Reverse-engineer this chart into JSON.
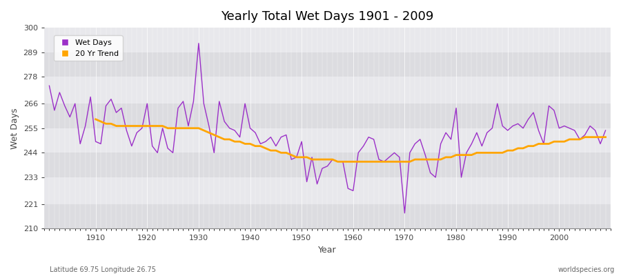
{
  "title": "Yearly Total Wet Days 1901 - 2009",
  "xlabel": "Year",
  "ylabel": "Wet Days",
  "subtitle_left": "Latitude 69.75 Longitude 26.75",
  "subtitle_right": "worldspecies.org",
  "wet_days_color": "#9b30c8",
  "trend_color": "#FFA500",
  "fig_bg_color": "#ffffff",
  "plot_bg_color": "#e8e8ec",
  "ylim": [
    210,
    300
  ],
  "yticks": [
    210,
    221,
    233,
    244,
    255,
    266,
    278,
    289,
    300
  ],
  "xticks": [
    1910,
    1920,
    1930,
    1940,
    1950,
    1960,
    1970,
    1980,
    1990,
    2000
  ],
  "xlim": [
    1900,
    2010
  ],
  "years": [
    1901,
    1902,
    1903,
    1904,
    1905,
    1906,
    1907,
    1908,
    1909,
    1910,
    1911,
    1912,
    1913,
    1914,
    1915,
    1916,
    1917,
    1918,
    1919,
    1920,
    1921,
    1922,
    1923,
    1924,
    1925,
    1926,
    1927,
    1928,
    1929,
    1930,
    1931,
    1932,
    1933,
    1934,
    1935,
    1936,
    1937,
    1938,
    1939,
    1940,
    1941,
    1942,
    1943,
    1944,
    1945,
    1946,
    1947,
    1948,
    1949,
    1950,
    1951,
    1952,
    1953,
    1954,
    1955,
    1956,
    1957,
    1958,
    1959,
    1960,
    1961,
    1962,
    1963,
    1964,
    1965,
    1966,
    1967,
    1968,
    1969,
    1970,
    1971,
    1972,
    1973,
    1974,
    1975,
    1976,
    1977,
    1978,
    1979,
    1980,
    1981,
    1982,
    1983,
    1984,
    1985,
    1986,
    1987,
    1988,
    1989,
    1990,
    1991,
    1992,
    1993,
    1994,
    1995,
    1996,
    1997,
    1998,
    1999,
    2000,
    2001,
    2002,
    2003,
    2004,
    2005,
    2006,
    2007,
    2008,
    2009
  ],
  "wet_days": [
    274,
    263,
    271,
    265,
    260,
    266,
    248,
    256,
    269,
    249,
    248,
    265,
    268,
    262,
    264,
    254,
    247,
    253,
    255,
    266,
    247,
    244,
    255,
    246,
    244,
    264,
    267,
    256,
    267,
    293,
    266,
    256,
    244,
    267,
    258,
    255,
    254,
    251,
    266,
    255,
    253,
    248,
    249,
    251,
    247,
    251,
    252,
    241,
    242,
    249,
    231,
    242,
    230,
    237,
    238,
    241,
    240,
    240,
    228,
    227,
    244,
    247,
    251,
    250,
    241,
    240,
    242,
    244,
    242,
    217,
    244,
    248,
    250,
    243,
    235,
    233,
    248,
    253,
    250,
    264,
    233,
    244,
    248,
    253,
    247,
    253,
    255,
    266,
    256,
    254,
    256,
    257,
    255,
    259,
    262,
    254,
    248,
    265,
    263,
    255,
    256,
    255,
    254,
    250,
    252,
    256,
    254,
    248,
    254
  ],
  "trend_years": [
    1910,
    1911,
    1912,
    1913,
    1914,
    1915,
    1916,
    1917,
    1918,
    1919,
    1920,
    1921,
    1922,
    1923,
    1924,
    1925,
    1926,
    1927,
    1928,
    1929,
    1930,
    1931,
    1932,
    1933,
    1934,
    1935,
    1936,
    1937,
    1938,
    1939,
    1940,
    1941,
    1942,
    1943,
    1944,
    1945,
    1946,
    1947,
    1948,
    1949,
    1950,
    1951,
    1952,
    1953,
    1954,
    1955,
    1956,
    1957,
    1958,
    1959,
    1960,
    1961,
    1962,
    1963,
    1964,
    1965,
    1966,
    1967,
    1968,
    1969,
    1970,
    1971,
    1972,
    1973,
    1974,
    1975,
    1976,
    1977,
    1978,
    1979,
    1980,
    1981,
    1982,
    1983,
    1984,
    1985,
    1986,
    1987,
    1988,
    1989,
    1990,
    1991,
    1992,
    1993,
    1994,
    1995,
    1996,
    1997,
    1998,
    1999,
    2000,
    2001,
    2002,
    2003,
    2004,
    2005,
    2006,
    2007,
    2008,
    2009
  ],
  "trend_values": [
    259,
    258,
    257,
    257,
    256,
    256,
    256,
    256,
    256,
    256,
    256,
    256,
    256,
    256,
    255,
    255,
    255,
    255,
    255,
    255,
    255,
    254,
    253,
    252,
    251,
    250,
    250,
    249,
    249,
    248,
    248,
    247,
    247,
    246,
    245,
    245,
    244,
    244,
    243,
    242,
    242,
    242,
    241,
    241,
    241,
    241,
    241,
    240,
    240,
    240,
    240,
    240,
    240,
    240,
    240,
    240,
    240,
    240,
    240,
    240,
    240,
    240,
    241,
    241,
    241,
    241,
    241,
    241,
    242,
    242,
    243,
    243,
    243,
    243,
    244,
    244,
    244,
    244,
    244,
    244,
    245,
    245,
    246,
    246,
    247,
    247,
    248,
    248,
    248,
    249,
    249,
    249,
    250,
    250,
    250,
    251,
    251,
    251,
    251,
    251
  ]
}
